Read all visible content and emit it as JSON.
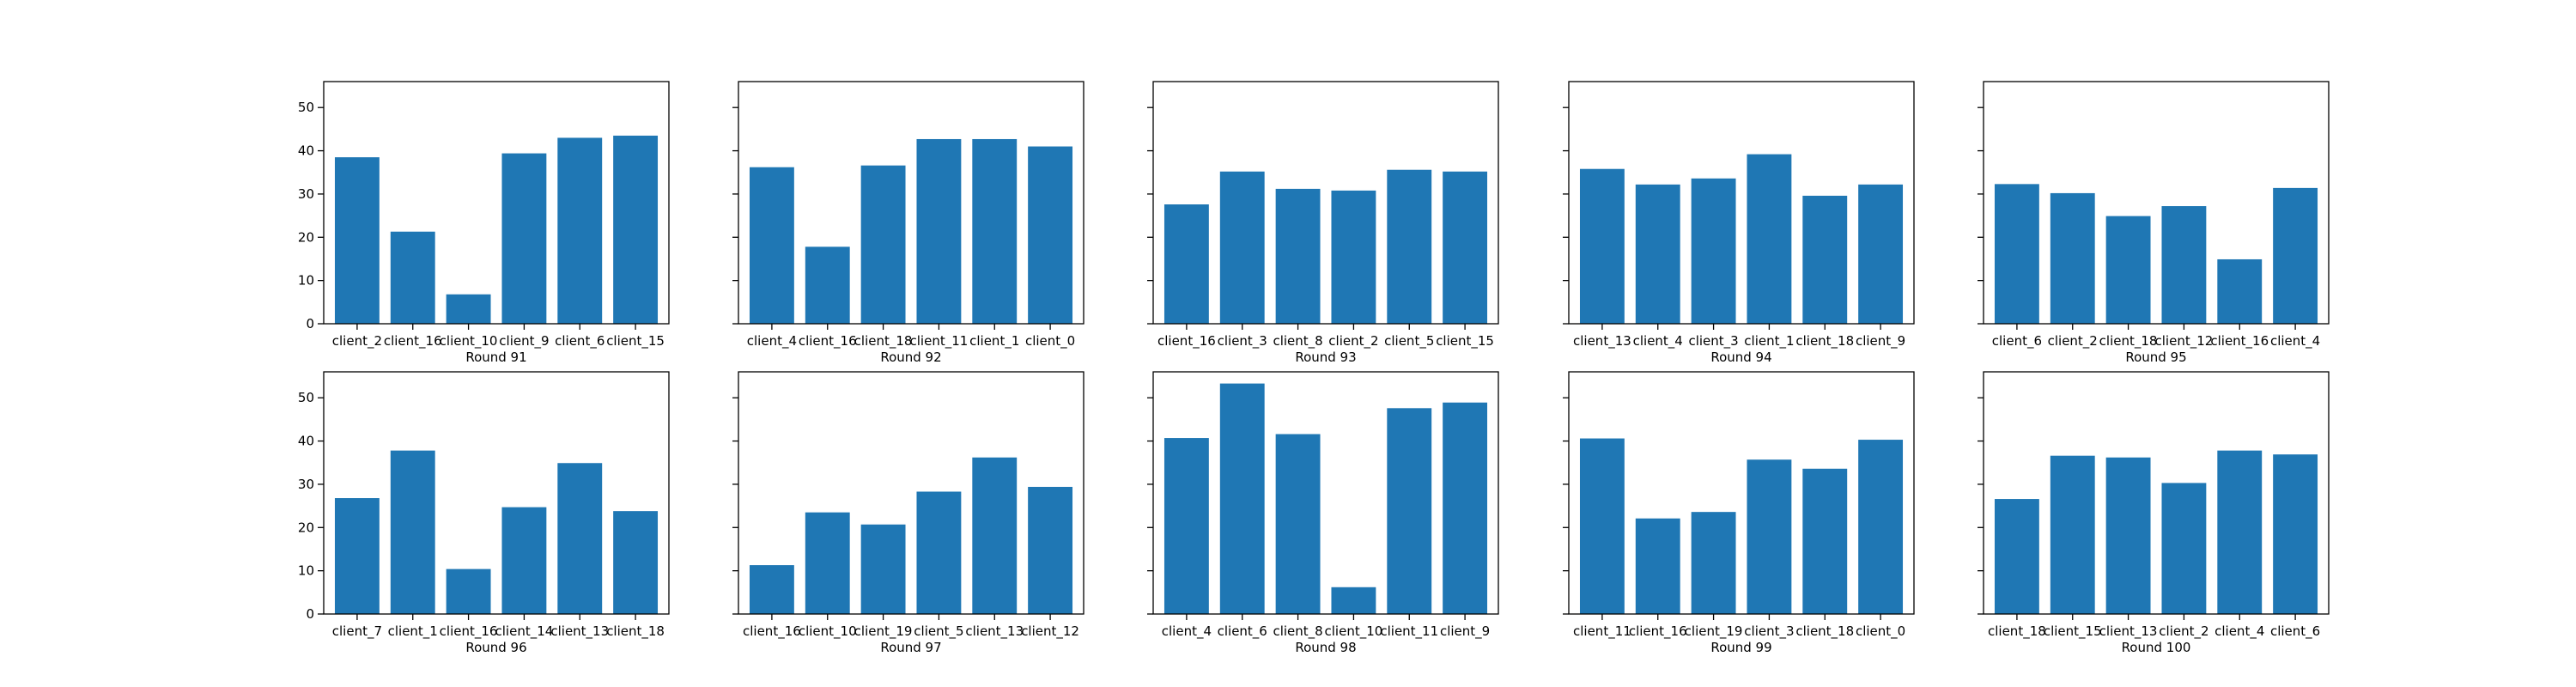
{
  "chart_data": [
    {
      "type": "bar",
      "xlabel": "Round 91",
      "categories": [
        "client_2",
        "client_16",
        "client_10",
        "client_9",
        "client_6",
        "client_15"
      ],
      "values": [
        38.5,
        21.3,
        6.8,
        39.4,
        43.0,
        43.5
      ],
      "ylim": [
        0,
        56
      ],
      "yticks": [
        0,
        10,
        20,
        30,
        40,
        50
      ],
      "color": "#1f77b4"
    },
    {
      "type": "bar",
      "xlabel": "Round 92",
      "categories": [
        "client_4",
        "client_16",
        "client_18",
        "client_11",
        "client_1",
        "client_0"
      ],
      "values": [
        36.2,
        17.8,
        36.6,
        42.7,
        42.7,
        41.0
      ],
      "ylim": [
        0,
        56
      ],
      "yticks": [
        0,
        10,
        20,
        30,
        40,
        50
      ],
      "color": "#1f77b4"
    },
    {
      "type": "bar",
      "xlabel": "Round 93",
      "categories": [
        "client_16",
        "client_3",
        "client_8",
        "client_2",
        "client_5",
        "client_15"
      ],
      "values": [
        27.6,
        35.2,
        31.2,
        30.8,
        35.6,
        35.2
      ],
      "ylim": [
        0,
        56
      ],
      "yticks": [
        0,
        10,
        20,
        30,
        40,
        50
      ],
      "color": "#1f77b4"
    },
    {
      "type": "bar",
      "xlabel": "Round 94",
      "categories": [
        "client_13",
        "client_4",
        "client_3",
        "client_1",
        "client_18",
        "client_9"
      ],
      "values": [
        35.8,
        32.2,
        33.6,
        39.2,
        29.6,
        32.2
      ],
      "ylim": [
        0,
        56
      ],
      "yticks": [
        0,
        10,
        20,
        30,
        40,
        50
      ],
      "color": "#1f77b4"
    },
    {
      "type": "bar",
      "xlabel": "Round 95",
      "categories": [
        "client_6",
        "client_2",
        "client_18",
        "client_12",
        "client_16",
        "client_4"
      ],
      "values": [
        32.3,
        30.2,
        24.9,
        27.2,
        14.9,
        31.4
      ],
      "ylim": [
        0,
        56
      ],
      "yticks": [
        0,
        10,
        20,
        30,
        40,
        50
      ],
      "color": "#1f77b4"
    },
    {
      "type": "bar",
      "xlabel": "Round 96",
      "categories": [
        "client_7",
        "client_1",
        "client_16",
        "client_14",
        "client_13",
        "client_18"
      ],
      "values": [
        26.8,
        37.8,
        10.4,
        24.7,
        34.9,
        23.8
      ],
      "ylim": [
        0,
        56
      ],
      "yticks": [
        0,
        10,
        20,
        30,
        40,
        50
      ],
      "color": "#1f77b4"
    },
    {
      "type": "bar",
      "xlabel": "Round 97",
      "categories": [
        "client_16",
        "client_10",
        "client_19",
        "client_5",
        "client_13",
        "client_12"
      ],
      "values": [
        11.3,
        23.5,
        20.7,
        28.3,
        36.2,
        29.4
      ],
      "ylim": [
        0,
        56
      ],
      "yticks": [
        0,
        10,
        20,
        30,
        40,
        50
      ],
      "color": "#1f77b4"
    },
    {
      "type": "bar",
      "xlabel": "Round 98",
      "categories": [
        "client_4",
        "client_6",
        "client_8",
        "client_10",
        "client_11",
        "client_9"
      ],
      "values": [
        40.7,
        53.3,
        41.6,
        6.2,
        47.6,
        48.9
      ],
      "ylim": [
        0,
        56
      ],
      "yticks": [
        0,
        10,
        20,
        30,
        40,
        50
      ],
      "color": "#1f77b4"
    },
    {
      "type": "bar",
      "xlabel": "Round 99",
      "categories": [
        "client_11",
        "client_16",
        "client_19",
        "client_3",
        "client_18",
        "client_0"
      ],
      "values": [
        40.6,
        22.1,
        23.6,
        35.7,
        33.6,
        40.3
      ],
      "ylim": [
        0,
        56
      ],
      "yticks": [
        0,
        10,
        20,
        30,
        40,
        50
      ],
      "color": "#1f77b4"
    },
    {
      "type": "bar",
      "xlabel": "Round 100",
      "categories": [
        "client_18",
        "client_15",
        "client_13",
        "client_2",
        "client_4",
        "client_6"
      ],
      "values": [
        26.6,
        36.6,
        36.2,
        30.3,
        37.8,
        36.9
      ],
      "ylim": [
        0,
        56
      ],
      "yticks": [
        0,
        10,
        20,
        30,
        40,
        50
      ],
      "color": "#1f77b4"
    }
  ]
}
